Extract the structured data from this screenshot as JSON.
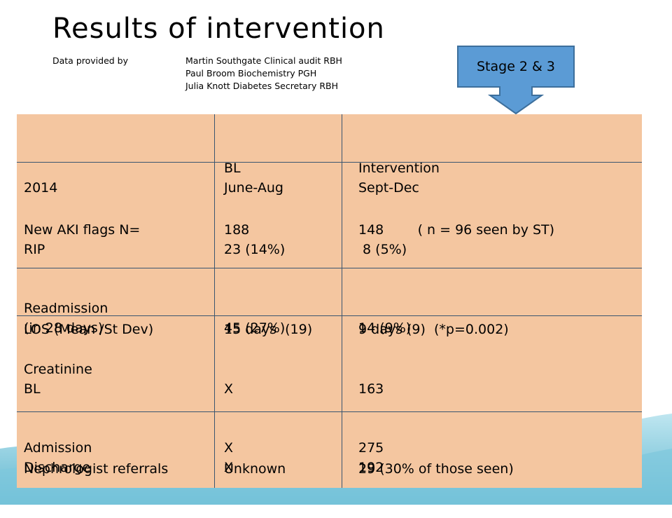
{
  "title": "Results of intervention",
  "credits": {
    "label": "Data provided by",
    "lines": [
      "Martin Southgate Clinical audit RBH",
      "Paul Broom Biochemistry PGH",
      "Julia Knott Diabetes Secretary RBH"
    ]
  },
  "callout": {
    "label": "Stage 2 & 3"
  },
  "table": {
    "rows": [
      {
        "col1": [
          "",
          "2014"
        ],
        "col2": [
          "BL",
          "June-Aug"
        ],
        "col3": [
          "Intervention",
          "Sept-Dec"
        ]
      },
      {
        "col1": [
          "New AKI flags N=",
          "RIP",
          "Readmission",
          "(in 28 days)"
        ],
        "col2": [
          "188",
          "23 (14%)",
          "",
          "45 (27%)"
        ],
        "col3": [
          "148        ( n = 96 seen by ST)",
          " 8 (5%)",
          "",
          "14 (9%)"
        ]
      },
      {
        "col1": [
          "LOS (Mean /St Dev)"
        ],
        "col2": [
          "15 days  (19)"
        ],
        "col3": [
          "9 days (9)  (*p=0.002)"
        ]
      },
      {
        "col1": [
          "Creatinine",
          "BL",
          "Admission",
          "Discharge"
        ],
        "col2": [
          "",
          "X",
          "X",
          "X"
        ],
        "col3": [
          "",
          "163",
          "275",
          "192"
        ]
      },
      {
        "col1": [
          "Nephrologist referrals"
        ],
        "col2": [
          "Unknown"
        ],
        "col3": [
          "29 (30% of those seen)"
        ]
      }
    ]
  },
  "colors": {
    "table_fill": "#f4c6a0",
    "callout_fill": "#5b9bd5",
    "grid_line": "#3a5570",
    "wave": "#7ec8dd"
  }
}
